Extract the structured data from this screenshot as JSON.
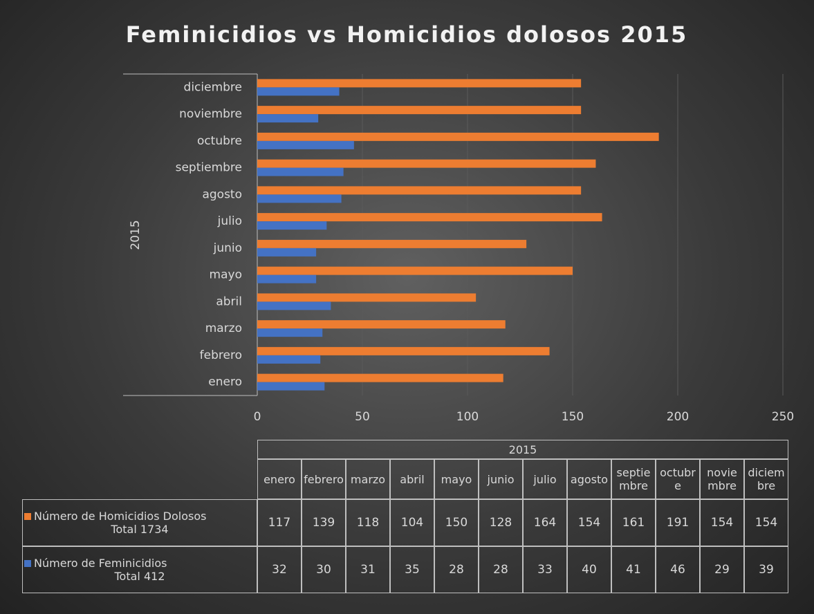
{
  "chart_data": {
    "type": "barh",
    "title": "Feminicidios vs Homicidios dolosos 2015",
    "group": "2015",
    "categories": [
      "enero",
      "febrero",
      "marzo",
      "abril",
      "mayo",
      "junio",
      "julio",
      "agosto",
      "septiembre",
      "octubre",
      "noviembre",
      "diciembre"
    ],
    "series": [
      {
        "name": "Número de Homicidios Dolosos",
        "total": "Total 1734",
        "color": "#ed7d31",
        "values": [
          117,
          139,
          118,
          104,
          150,
          128,
          164,
          154,
          161,
          191,
          154,
          154
        ]
      },
      {
        "name": "Número de Feminicidios",
        "total": "Total 412",
        "color": "#4472c4",
        "values": [
          32,
          30,
          31,
          35,
          28,
          28,
          33,
          40,
          41,
          46,
          29,
          39
        ]
      }
    ],
    "xlim": [
      0,
      250
    ],
    "xticks": [
      0,
      50,
      100,
      150,
      200,
      250
    ],
    "grid": true
  }
}
